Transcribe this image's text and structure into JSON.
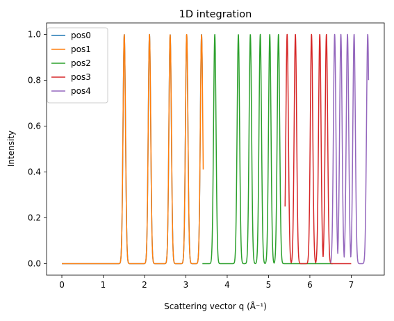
{
  "chart_data": {
    "type": "line",
    "title": "1D integration",
    "xlabel": "Scattering vector q (Å⁻¹)",
    "ylabel": "Intensity",
    "xlim": [
      -0.37,
      7.8
    ],
    "ylim": [
      -0.05,
      1.05
    ],
    "xticks": [
      0,
      1,
      2,
      3,
      4,
      5,
      6,
      7
    ],
    "yticks": [
      0.0,
      0.2,
      0.4,
      0.6,
      0.8,
      1.0
    ],
    "xtick_labels": [
      "0",
      "1",
      "2",
      "3",
      "4",
      "5",
      "6",
      "7"
    ],
    "ytick_labels": [
      "0.0",
      "0.2",
      "0.4",
      "0.6",
      "0.8",
      "1.0"
    ],
    "legend_position": "top-left",
    "peak_width": 0.03,
    "series": [
      {
        "name": "pos0",
        "color": "#1f77b4",
        "x_range": [
          0.0,
          3.4
        ],
        "peaks": [
          1.51,
          2.12,
          2.62,
          3.02,
          3.38
        ]
      },
      {
        "name": "pos1",
        "color": "#ff7f0e",
        "x_range": [
          0.0,
          3.42
        ],
        "peaks": [
          1.51,
          2.12,
          2.62,
          3.02,
          3.38
        ]
      },
      {
        "name": "pos2",
        "color": "#2ca02c",
        "x_range": [
          3.4,
          6.55
        ],
        "peaks": [
          3.7,
          4.27,
          4.56,
          4.8,
          5.03,
          5.24
        ]
      },
      {
        "name": "pos3",
        "color": "#d62728",
        "x_range": [
          5.4,
          7.0
        ],
        "peaks": [
          5.45,
          5.65,
          6.04,
          6.24,
          6.4
        ]
      },
      {
        "name": "pos4",
        "color": "#9467bd",
        "x_range": [
          6.5,
          7.42
        ],
        "peaks": [
          6.6,
          6.75,
          6.91,
          7.07,
          7.4
        ]
      }
    ]
  }
}
